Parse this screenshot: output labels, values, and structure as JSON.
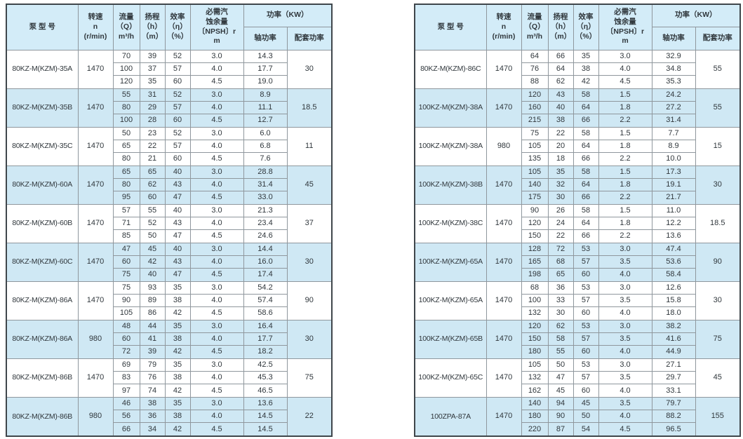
{
  "header": {
    "model": "泵  型  号",
    "speed": "转速\nn\n(r/min)",
    "flow": "流量\n（Q）\nm³/h",
    "head": "扬程\n（h）\n（m）",
    "efficiency": "效率\n（η）\n（%）",
    "npsh": "必需汽\n蚀余量\n〔NPSH〕r\nm",
    "power_group": "功率（KW）",
    "shaft_power": "轴功率",
    "matched_power": "配套功率"
  },
  "colors": {
    "highlight_blue": "#cfe8f4",
    "header_blue": "#d3ecf8",
    "grid_line": "#8f979d",
    "outer_border": "#3f464b"
  },
  "tables": [
    {
      "blocks": [
        {
          "model": "80KZ-M(KZM)-35A",
          "speed": "1470",
          "highlight": false,
          "matched": "30",
          "rows": [
            [
              "70",
              "39",
              "52",
              "3.0",
              "14.3"
            ],
            [
              "100",
              "37",
              "57",
              "4.0",
              "17.7"
            ],
            [
              "120",
              "35",
              "60",
              "4.5",
              "19.0"
            ]
          ]
        },
        {
          "model": "80KZ-M(KZM)-35B",
          "speed": "1470",
          "highlight": true,
          "matched": "18.5",
          "rows": [
            [
              "55",
              "31",
              "52",
              "3.0",
              "8.9"
            ],
            [
              "80",
              "29",
              "57",
              "4.0",
              "11.1"
            ],
            [
              "100",
              "28",
              "60",
              "4.5",
              "12.7"
            ]
          ]
        },
        {
          "model": "80KZ-M(KZM)-35C",
          "speed": "1470",
          "highlight": false,
          "matched": "11",
          "rows": [
            [
              "50",
              "23",
              "52",
              "3.0",
              "6.0"
            ],
            [
              "65",
              "22",
              "57",
              "4.0",
              "6.8"
            ],
            [
              "80",
              "21",
              "60",
              "4.5",
              "7.6"
            ]
          ]
        },
        {
          "model": "80KZ-M(KZM)-60A",
          "speed": "1470",
          "highlight": true,
          "matched": "45",
          "rows": [
            [
              "65",
              "65",
              "40",
              "3.0",
              "28.8"
            ],
            [
              "80",
              "62",
              "43",
              "4.0",
              "31.4"
            ],
            [
              "95",
              "60",
              "47",
              "4.5",
              "33.0"
            ]
          ]
        },
        {
          "model": "80KZ-M(KZM)-60B",
          "speed": "1470",
          "highlight": false,
          "matched": "37",
          "rows": [
            [
              "57",
              "55",
              "40",
              "3.0",
              "21.3"
            ],
            [
              "71",
              "52",
              "43",
              "4.0",
              "23.4"
            ],
            [
              "85",
              "50",
              "47",
              "4.5",
              "24.6"
            ]
          ]
        },
        {
          "model": "80KZ-M(KZM)-60C",
          "speed": "1470",
          "highlight": true,
          "matched": "30",
          "rows": [
            [
              "47",
              "45",
              "40",
              "3.0",
              "14.4"
            ],
            [
              "60",
              "42",
              "43",
              "4.0",
              "16.0"
            ],
            [
              "75",
              "40",
              "47",
              "4.5",
              "17.4"
            ]
          ]
        },
        {
          "model": "80KZ-M(KZM)-86A",
          "speed": "1470",
          "highlight": false,
          "matched": "90",
          "rows": [
            [
              "75",
              "93",
              "35",
              "3.0",
              "54.2"
            ],
            [
              "90",
              "89",
              "38",
              "4.0",
              "57.4"
            ],
            [
              "105",
              "86",
              "42",
              "4.5",
              "58.6"
            ]
          ]
        },
        {
          "model": "80KZ-M(KZM)-86A",
          "speed": "980",
          "highlight": true,
          "matched": "30",
          "rows": [
            [
              "48",
              "44",
              "35",
              "3.0",
              "16.4"
            ],
            [
              "60",
              "41",
              "38",
              "4.0",
              "17.7"
            ],
            [
              "72",
              "39",
              "42",
              "4.5",
              "18.2"
            ]
          ]
        },
        {
          "model": "80KZ-M(KZM)-86B",
          "speed": "1470",
          "highlight": false,
          "matched": "75",
          "rows": [
            [
              "69",
              "79",
              "35",
              "3.0",
              "42.5"
            ],
            [
              "83",
              "76",
              "38",
              "4.0",
              "45.3"
            ],
            [
              "97",
              "74",
              "42",
              "4.5",
              "46.5"
            ]
          ]
        },
        {
          "model": "80KZ-M(KZM)-86B",
          "speed": "980",
          "highlight": true,
          "matched": "22",
          "rows": [
            [
              "46",
              "38",
              "35",
              "3.0",
              "13.6"
            ],
            [
              "56",
              "36",
              "38",
              "4.0",
              "14.5"
            ],
            [
              "66",
              "34",
              "42",
              "4.5",
              "14.5"
            ]
          ]
        }
      ]
    },
    {
      "blocks": [
        {
          "model": "80KZ-M(KZM)-86C",
          "speed": "1470",
          "highlight": false,
          "matched": "55",
          "rows": [
            [
              "64",
              "66",
              "35",
              "3.0",
              "32.9"
            ],
            [
              "76",
              "64",
              "38",
              "4.0",
              "34.8"
            ],
            [
              "88",
              "62",
              "42",
              "4.5",
              "35.3"
            ]
          ]
        },
        {
          "model": "100KZ-M(KZM)-38A",
          "speed": "1470",
          "highlight": true,
          "matched": "55",
          "rows": [
            [
              "120",
              "43",
              "58",
              "1.5",
              "24.2"
            ],
            [
              "160",
              "40",
              "64",
              "1.8",
              "27.2"
            ],
            [
              "215",
              "38",
              "66",
              "2.2",
              "31.4"
            ]
          ]
        },
        {
          "model": "100KZ-M(KZM)-38A",
          "speed": "980",
          "highlight": false,
          "matched": "15",
          "rows": [
            [
              "75",
              "22",
              "58",
              "1.5",
              "7.7"
            ],
            [
              "105",
              "20",
              "64",
              "1.8",
              "8.9"
            ],
            [
              "135",
              "18",
              "66",
              "2.2",
              "10.0"
            ]
          ]
        },
        {
          "model": "100KZ-M(KZM)-38B",
          "speed": "1470",
          "highlight": true,
          "matched": "30",
          "rows": [
            [
              "105",
              "35",
              "58",
              "1.5",
              "17.3"
            ],
            [
              "140",
              "32",
              "64",
              "1.8",
              "19.1"
            ],
            [
              "175",
              "30",
              "66",
              "2.2",
              "21.7"
            ]
          ]
        },
        {
          "model": "100KZ-M(KZM)-38C",
          "speed": "1470",
          "highlight": false,
          "matched": "18.5",
          "rows": [
            [
              "90",
              "26",
              "58",
              "1.5",
              "11.0"
            ],
            [
              "120",
              "24",
              "64",
              "1.8",
              "12.2"
            ],
            [
              "150",
              "22",
              "66",
              "2.2",
              "13.6"
            ]
          ]
        },
        {
          "model": "100KZ-M(KZM)-65A",
          "speed": "1470",
          "highlight": true,
          "matched": "90",
          "rows": [
            [
              "128",
              "72",
              "53",
              "3.0",
              "47.4"
            ],
            [
              "165",
              "68",
              "57",
              "3.5",
              "53.6"
            ],
            [
              "198",
              "65",
              "60",
              "4.0",
              "58.4"
            ]
          ]
        },
        {
          "model": "100KZ-M(KZM)-65A",
          "speed": "1470",
          "highlight": false,
          "matched": "30",
          "rows": [
            [
              "68",
              "36",
              "53",
              "3.0",
              "12.6"
            ],
            [
              "100",
              "33",
              "57",
              "3.5",
              "15.8"
            ],
            [
              "132",
              "30",
              "60",
              "4.0",
              "18.0"
            ]
          ]
        },
        {
          "model": "100KZ-M(KZM)-65B",
          "speed": "1470",
          "highlight": true,
          "matched": "75",
          "rows": [
            [
              "120",
              "62",
              "53",
              "3.0",
              "38.2"
            ],
            [
              "150",
              "58",
              "57",
              "3.5",
              "41.6"
            ],
            [
              "180",
              "55",
              "60",
              "4.0",
              "44.9"
            ]
          ]
        },
        {
          "model": "100KZ-M(KZM)-65C",
          "speed": "1470",
          "highlight": false,
          "matched": "45",
          "rows": [
            [
              "105",
              "50",
              "53",
              "3.0",
              "27.1"
            ],
            [
              "132",
              "47",
              "57",
              "3.5",
              "29.7"
            ],
            [
              "162",
              "45",
              "60",
              "4.0",
              "33.1"
            ]
          ]
        },
        {
          "model": "100ZPA-87A",
          "speed": "1470",
          "highlight": true,
          "matched": "155",
          "rows": [
            [
              "140",
              "94",
              "45",
              "3.5",
              "79.7"
            ],
            [
              "180",
              "90",
              "50",
              "4.0",
              "88.2"
            ],
            [
              "220",
              "87",
              "54",
              "4.5",
              "96.5"
            ]
          ]
        }
      ]
    }
  ]
}
